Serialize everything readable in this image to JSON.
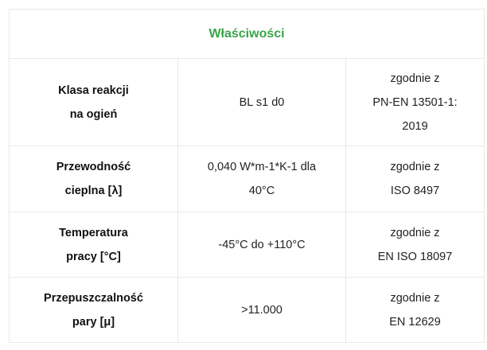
{
  "title": "Właściwości",
  "accent_color": "#3aa54a",
  "rows": [
    {
      "property": [
        "Klasa reakcji",
        "na ogień"
      ],
      "value": [
        "BL s1 d0"
      ],
      "standard": [
        "zgodnie z",
        "PN-EN 13501-1:",
        "2019"
      ]
    },
    {
      "property": [
        "Przewodność",
        "cieplna [λ]"
      ],
      "value": [
        "0,040 W*m-1*K-1 dla",
        "40°C"
      ],
      "standard": [
        "zgodnie z",
        "ISO 8497"
      ]
    },
    {
      "property": [
        "Temperatura",
        "pracy [°C]"
      ],
      "value": [
        "-45°C do +110°C"
      ],
      "standard": [
        "zgodnie z",
        "EN ISO 18097"
      ]
    },
    {
      "property": [
        "Przepuszczalność",
        "pary [μ]"
      ],
      "value": [
        ">11.000"
      ],
      "standard": [
        "zgodnie z",
        "EN 12629"
      ]
    }
  ]
}
